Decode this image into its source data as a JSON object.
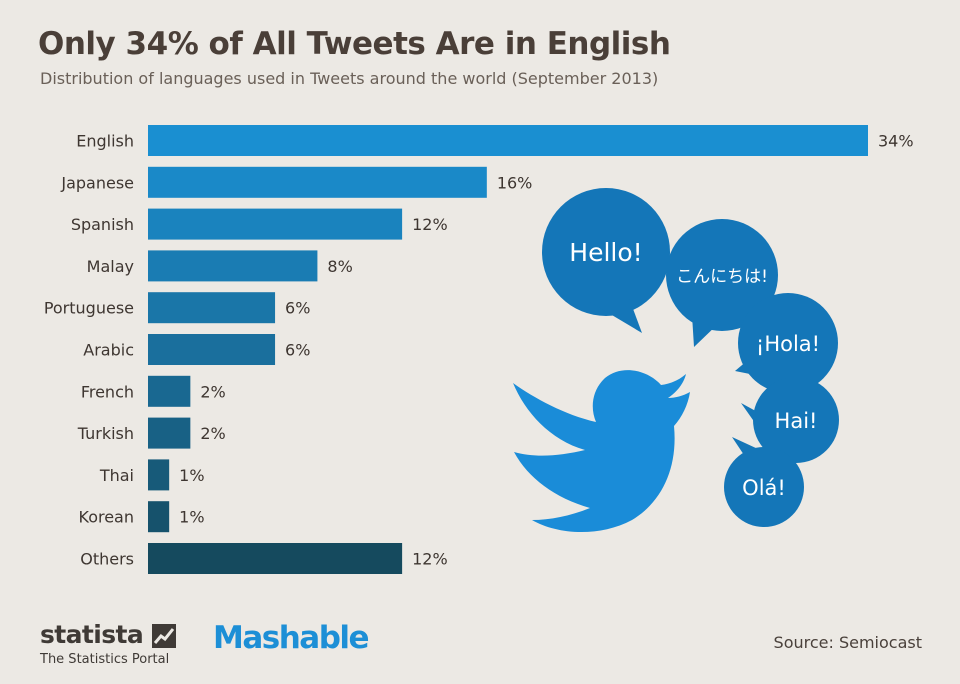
{
  "chart_data": {
    "type": "bar",
    "orientation": "horizontal",
    "title": "Only 34% of All Tweets Are in English",
    "subtitle": "Distribution of languages used in Tweets around the world (September 2013)",
    "xlabel": "",
    "ylabel": "",
    "xlim": [
      0,
      34
    ],
    "grid": false,
    "categories": [
      "English",
      "Japanese",
      "Spanish",
      "Malay",
      "Portuguese",
      "Arabic",
      "French",
      "Turkish",
      "Thai",
      "Korean",
      "Others"
    ],
    "values": [
      34,
      16,
      12,
      8,
      6,
      6,
      2,
      2,
      1,
      1,
      12
    ],
    "value_labels": [
      "34%",
      "16%",
      "12%",
      "8%",
      "6%",
      "6%",
      "2%",
      "2%",
      "1%",
      "1%",
      "12%"
    ],
    "colors": [
      "#1a8fd1",
      "#1a89c8",
      "#1a83be",
      "#1a7cb3",
      "#1a76a8",
      "#1a6f9d",
      "#196891",
      "#186185",
      "#175a79",
      "#16526c",
      "#154a5e"
    ]
  },
  "illustration": {
    "icon": "twitter-bird-icon",
    "bird_color": "#1a8cd8",
    "bubble_color": "#1476b8",
    "bubbles": [
      "Hello!",
      "こんにちは!",
      "¡Hola!",
      "Hai!",
      "Olá!"
    ]
  },
  "footer": {
    "statista_logo": "statista",
    "statista_tagline": "The Statistics Portal",
    "mashable_logo": "Mashable",
    "source": "Source: Semiocast"
  }
}
